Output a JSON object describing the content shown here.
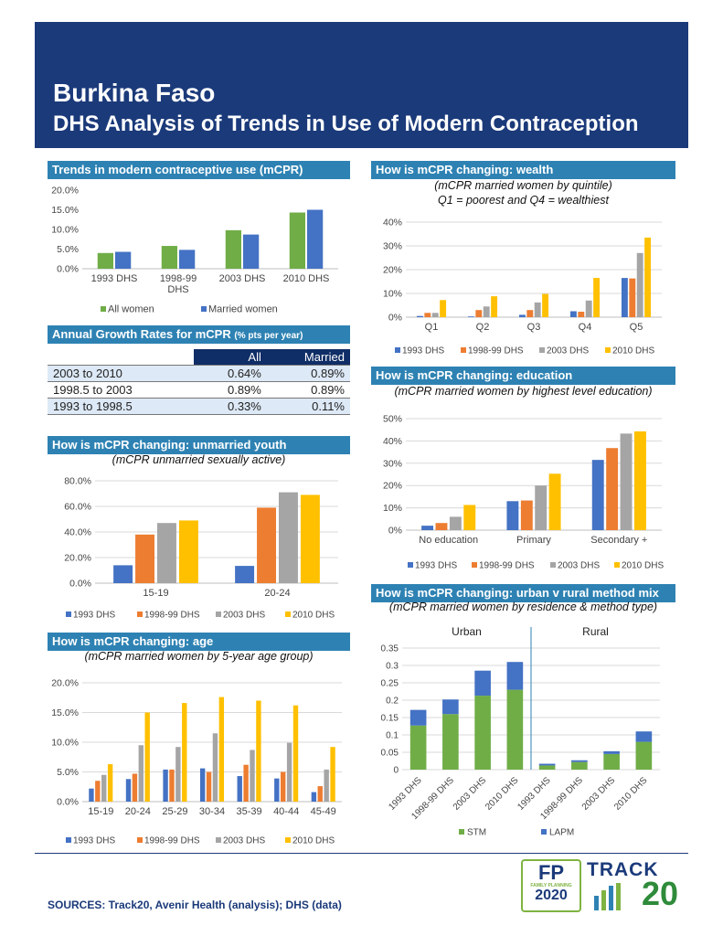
{
  "header": {
    "country": "Burkina Faso",
    "subtitle": "DHS Analysis of Trends in Use of Modern Contraception"
  },
  "colors": {
    "header": "#1b3a7a",
    "panel": "#2e82b3",
    "green": "#70ad47",
    "blue": "#4472c4",
    "orange": "#ed7d31",
    "gray": "#a5a5a5",
    "gold": "#ffc000"
  },
  "panels": {
    "mcpr": {
      "title": "Trends in modern contraceptive use (mCPR)"
    },
    "growth": {
      "title": "Annual Growth Rates for mCPR",
      "title_small": "(% pts per year)"
    },
    "youth": {
      "title": "How is mCPR changing: unmarried youth",
      "subtitle": "(mCPR unmarried sexually active)"
    },
    "age": {
      "title": "How is mCPR changing: age",
      "subtitle": "(mCPR married women by 5-year age group)"
    },
    "wealth": {
      "title": "How is mCPR changing: wealth",
      "subtitle1": "(mCPR married women by quintile)",
      "subtitle2": "Q1 = poorest and Q4 = wealthiest"
    },
    "education": {
      "title": "How is mCPR changing: education",
      "subtitle": "(mCPR married women by highest level education)"
    },
    "mix": {
      "title": "How is mCPR changing: urban v rural method mix",
      "subtitle": "(mCPR married women by residence & method type)"
    }
  },
  "growth_table": {
    "headers": [
      "All",
      "Married"
    ],
    "rows": [
      {
        "period": "2003 to 2010",
        "all": "0.64%",
        "married": "0.89%"
      },
      {
        "period": "1998.5 to 2003",
        "all": "0.89%",
        "married": "0.89%"
      },
      {
        "period": "1993 to 1998.5",
        "all": "0.33%",
        "married": "0.11%"
      }
    ]
  },
  "chart_data": [
    {
      "id": "mcpr",
      "type": "bar",
      "categories": [
        "1993 DHS",
        "1998-99 DHS",
        "2003 DHS",
        "2010 DHS"
      ],
      "series": [
        {
          "name": "All women",
          "values": [
            4.0,
            5.8,
            9.8,
            14.3
          ]
        },
        {
          "name": "Married women",
          "values": [
            4.3,
            4.8,
            8.7,
            15.0
          ]
        }
      ],
      "yticks": [
        "0.0%",
        "5.0%",
        "10.0%",
        "15.0%",
        "20.0%"
      ],
      "ylim": [
        0,
        20
      ]
    },
    {
      "id": "youth",
      "type": "bar",
      "categories": [
        "15-19",
        "20-24"
      ],
      "series": [
        {
          "name": "1993 DHS",
          "values": [
            14.0,
            13.5
          ]
        },
        {
          "name": "1998-99 DHS",
          "values": [
            38.0,
            59.0
          ]
        },
        {
          "name": "2003 DHS",
          "values": [
            47.0,
            71.0
          ]
        },
        {
          "name": "2010 DHS",
          "values": [
            49.0,
            69.0
          ]
        }
      ],
      "yticks": [
        "0.0%",
        "20.0%",
        "40.0%",
        "60.0%",
        "80.0%"
      ],
      "ylim": [
        0,
        80
      ]
    },
    {
      "id": "age",
      "type": "bar",
      "categories": [
        "15-19",
        "20-24",
        "25-29",
        "30-34",
        "35-39",
        "40-44",
        "45-49"
      ],
      "series": [
        {
          "name": "1993 DHS",
          "values": [
            2.2,
            3.8,
            5.4,
            5.6,
            4.3,
            3.9,
            1.6
          ]
        },
        {
          "name": "1998-99 DHS",
          "values": [
            3.5,
            4.7,
            5.4,
            5.0,
            6.2,
            5.0,
            2.6
          ]
        },
        {
          "name": "2003 DHS",
          "values": [
            4.5,
            9.5,
            9.2,
            11.5,
            8.7,
            9.9,
            5.4
          ]
        },
        {
          "name": "2010 DHS",
          "values": [
            6.3,
            15.0,
            16.6,
            17.6,
            17.0,
            16.2,
            9.2
          ]
        }
      ],
      "yticks": [
        "0.0%",
        "5.0%",
        "10.0%",
        "15.0%",
        "20.0%"
      ],
      "ylim": [
        0,
        20
      ]
    },
    {
      "id": "wealth",
      "type": "bar",
      "categories": [
        "Q1",
        "Q2",
        "Q3",
        "Q4",
        "Q5"
      ],
      "series": [
        {
          "name": "1993 DHS",
          "values": [
            0.5,
            0.3,
            1.0,
            2.5,
            16.5
          ]
        },
        {
          "name": "1998-99 DHS",
          "values": [
            1.8,
            3.0,
            3.0,
            2.3,
            16.3
          ]
        },
        {
          "name": "2003 DHS",
          "values": [
            1.8,
            4.5,
            6.2,
            7.0,
            27.0
          ]
        },
        {
          "name": "2010 DHS",
          "values": [
            7.2,
            8.8,
            9.8,
            16.5,
            33.5
          ]
        }
      ],
      "yticks": [
        "0%",
        "10%",
        "20%",
        "30%",
        "40%"
      ],
      "ylim": [
        0,
        40
      ]
    },
    {
      "id": "education",
      "type": "bar",
      "categories": [
        "No education",
        "Primary",
        "Secondary +"
      ],
      "series": [
        {
          "name": "1993 DHS",
          "values": [
            2.0,
            13.0,
            31.5
          ]
        },
        {
          "name": "1998-99 DHS",
          "values": [
            3.2,
            13.3,
            36.8
          ]
        },
        {
          "name": "2003 DHS",
          "values": [
            6.0,
            20.0,
            43.3
          ]
        },
        {
          "name": "2010 DHS",
          "values": [
            11.3,
            25.3,
            44.3
          ]
        }
      ],
      "yticks": [
        "0%",
        "10%",
        "20%",
        "30%",
        "40%",
        "50%"
      ],
      "ylim": [
        0,
        50
      ]
    },
    {
      "id": "mix",
      "type": "stacked-bar",
      "groups": [
        "Urban",
        "Rural"
      ],
      "categories": [
        "1993 DHS",
        "1998-99 DHS",
        "2003 DHS",
        "2010 DHS",
        "1993 DHS",
        "1998-99 DHS",
        "2003 DHS",
        "2010 DHS"
      ],
      "series": [
        {
          "name": "STM",
          "values": [
            0.127,
            0.16,
            0.213,
            0.23,
            0.012,
            0.022,
            0.045,
            0.08
          ]
        },
        {
          "name": "LAPM",
          "values": [
            0.045,
            0.042,
            0.072,
            0.08,
            0.005,
            0.005,
            0.008,
            0.03
          ]
        }
      ],
      "yticks": [
        "0",
        "0.05",
        "0.1",
        "0.15",
        "0.2",
        "0.25",
        "0.3",
        "0.35"
      ],
      "ylim": [
        0,
        0.35
      ]
    }
  ],
  "footer": {
    "sources": "SOURCES: Track20, Avenir Health (analysis); DHS (data)"
  },
  "logos": {
    "fp_mark": "FP",
    "fp_family": "FAMILY PLANNING",
    "fp_year": "2020",
    "track_word": "TRACK",
    "track_num": "20"
  }
}
